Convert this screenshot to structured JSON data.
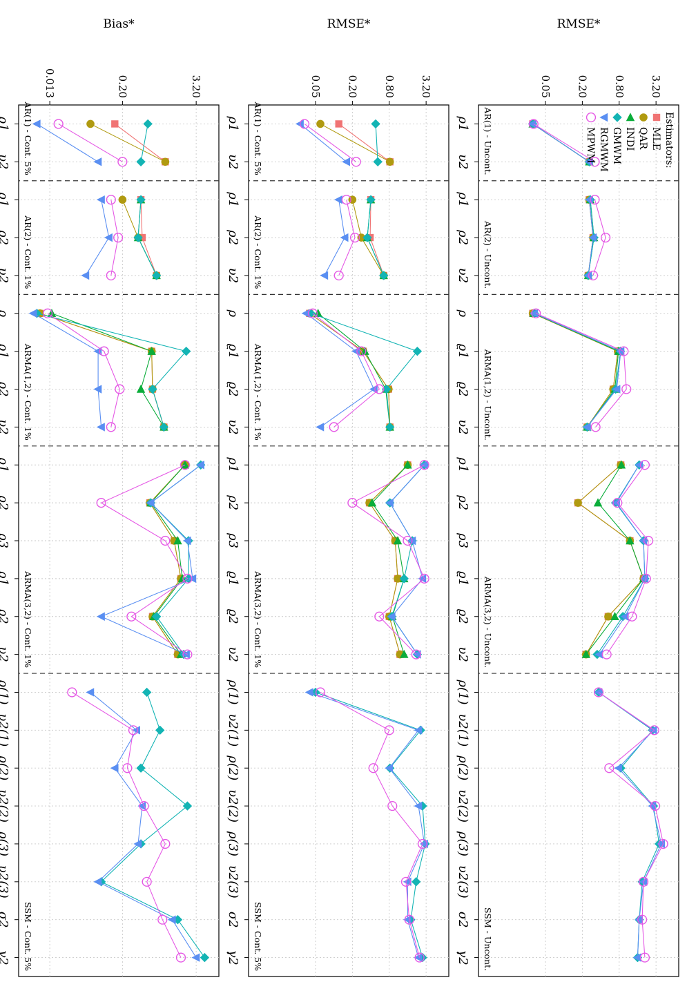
{
  "chart_data": {
    "type": "line",
    "estimators_title": "Estimators:",
    "estimators": [
      {
        "name": "MLE",
        "color": "#f07474",
        "shape": "square"
      },
      {
        "name": "QAR",
        "color": "#b09a10",
        "shape": "circle"
      },
      {
        "name": "INDI",
        "color": "#0aad3a",
        "shape": "triangle-left"
      },
      {
        "name": "GMWM",
        "color": "#13b4b4",
        "shape": "diamond"
      },
      {
        "name": "RGMWM",
        "color": "#5a8ff2",
        "shape": "triangle-down"
      },
      {
        "name": "MPWM",
        "color": "#e558e5",
        "shape": "open-circle"
      }
    ],
    "rows": [
      {
        "ylabel": "RMSE*",
        "yticks": [
          "0.05",
          "0.20",
          "0.80",
          "3.20"
        ],
        "panels": [
          {
            "title": "AR(1) - Uncont.",
            "params": [
              "ρ1",
              "υ2"
            ],
            "series": {
              "MLE": [
                0.031,
                0.26
              ],
              "QAR": [
                0.031,
                0.26
              ],
              "INDI": [
                0.031,
                0.26
              ],
              "GMWM": [
                0.031,
                0.26
              ],
              "RGMWM": [
                0.031,
                0.26
              ],
              "MPWM": [
                0.032,
                0.32
              ]
            }
          },
          {
            "title": "AR(2) - Uncont.",
            "params": [
              "ρ1",
              "ρ2",
              "υ2"
            ],
            "series": {
              "MLE": [
                0.26,
                0.3,
                0.25
              ],
              "QAR": [
                0.26,
                0.3,
                0.25
              ],
              "INDI": [
                0.27,
                0.31,
                0.25
              ],
              "GMWM": [
                0.27,
                0.31,
                0.25
              ],
              "RGMWM": [
                0.26,
                0.3,
                0.25
              ],
              "MPWM": [
                0.32,
                0.48,
                0.3
              ]
            }
          },
          {
            "title": "ARMA(1,2) - Uncont.",
            "params": [
              "ρ",
              "ϱ1",
              "ϱ2",
              "υ2"
            ],
            "series": {
              "MLE": [
                0.031,
                0.76,
                0.64,
                0.24
              ],
              "QAR": [
                0.031,
                0.76,
                0.64,
                0.24
              ],
              "INDI": [
                0.032,
                0.78,
                0.68,
                0.24
              ],
              "GMWM": [
                0.033,
                0.84,
                0.7,
                0.24
              ],
              "RGMWM": [
                0.033,
                0.85,
                0.73,
                0.24
              ],
              "MPWM": [
                0.035,
                0.95,
                1.05,
                0.33
              ]
            }
          },
          {
            "title": "ARMA(3,2) - Uncont.",
            "params": [
              "ρ1",
              "ρ2",
              "ρ3",
              "ϱ1",
              "ϱ2",
              "υ2"
            ],
            "series": {
              "MLE": [
                0.85,
                0.17,
                1.2,
                2.0,
                0.53,
                0.23
              ],
              "QAR": [
                0.85,
                0.17,
                1.2,
                2.0,
                0.53,
                0.23
              ],
              "INDI": [
                0.87,
                0.36,
                1.2,
                2.0,
                0.68,
                0.23
              ],
              "GMWM": [
                1.7,
                0.7,
                2.0,
                2.1,
                0.92,
                0.35
              ],
              "RGMWM": [
                1.7,
                0.72,
                2.0,
                2.1,
                1.0,
                0.38
              ],
              "MPWM": [
                2.1,
                0.75,
                2.4,
                2.2,
                1.3,
                0.5
              ]
            }
          },
          {
            "title": "SSM - Uncont.",
            "params": [
              "ρ(1)",
              "υ2(1)",
              "ρ(2)",
              "υ2(2)",
              "ρ(3)",
              "υ2(3)",
              "σ2",
              "γ2"
            ],
            "series": {
              "MLE": [],
              "QAR": [],
              "INDI": [],
              "GMWM": [
                0.37,
                2.8,
                0.85,
                2.9,
                3.6,
                1.9,
                1.7,
                1.6
              ],
              "RGMWM": [
                0.37,
                2.9,
                0.78,
                2.8,
                3.9,
                2.0,
                1.7,
                1.6
              ],
              "MPWM": [
                0.37,
                3.0,
                0.55,
                3.1,
                4.2,
                2.0,
                1.9,
                2.1
              ]
            }
          }
        ]
      },
      {
        "ylabel": "RMSE*",
        "yticks": [
          "0.05",
          "0.20",
          "0.80",
          "3.20"
        ],
        "panels": [
          {
            "title": "AR(1) - Cont. 5%",
            "params": [
              "ρ1",
              "υ2"
            ],
            "series": {
              "MLE": [
                0.12,
                0.82
              ],
              "QAR": [
                0.06,
                0.82
              ],
              "INDI": [],
              "GMWM": [
                0.48,
                0.52
              ],
              "RGMWM": [
                0.028,
                0.16
              ],
              "MPWM": [
                0.033,
                0.23
              ]
            }
          },
          {
            "title": "AR(2) - Cont. 1%",
            "params": [
              "ρ1",
              "ρ2",
              "υ2"
            ],
            "series": {
              "MLE": [
                0.4,
                0.39,
                0.65
              ],
              "QAR": [
                0.2,
                0.28,
                0.65
              ],
              "INDI": [
                0.4,
                0.35,
                0.65
              ],
              "GMWM": [
                0.4,
                0.35,
                0.65
              ],
              "RGMWM": [
                0.12,
                0.15,
                0.07
              ],
              "MPWM": [
                0.16,
                0.22,
                0.12
              ]
            }
          },
          {
            "title": "ARMA(1,2) - Cont. 1%",
            "params": [
              "ρ",
              "ϱ1",
              "ϱ2",
              "υ2"
            ],
            "series": {
              "MLE": [
                0.04,
                0.3,
                0.78,
                0.82
              ],
              "QAR": [
                0.04,
                0.3,
                0.78,
                0.82
              ],
              "INDI": [
                0.055,
                0.32,
                0.7,
                0.82
              ],
              "GMWM": [
                0.042,
                2.3,
                0.72,
                0.82
              ],
              "RGMWM": [
                0.035,
                0.23,
                0.45,
                0.06
              ],
              "MPWM": [
                0.045,
                0.28,
                0.55,
                0.1
              ]
            }
          },
          {
            "title": "ARMA(3,2) - Cont. 1%",
            "params": [
              "ρ1",
              "ρ2",
              "ρ3",
              "ϱ1",
              "ϱ2",
              "υ2"
            ],
            "series": {
              "MLE": [
                1.6,
                0.38,
                1.0,
                1.1,
                0.8,
                1.2
              ],
              "QAR": [
                1.6,
                0.38,
                1.0,
                1.1,
                0.8,
                1.2
              ],
              "INDI": [
                1.6,
                0.42,
                1.1,
                1.4,
                0.9,
                1.4
              ],
              "GMWM": [
                3.0,
                0.82,
                1.9,
                1.4,
                0.88,
                2.3
              ],
              "RGMWM": [
                3.0,
                0.82,
                1.9,
                2.8,
                0.88,
                2.3
              ],
              "MPWM": [
                3.0,
                0.2,
                1.6,
                3.0,
                0.55,
                2.2
              ]
            }
          },
          {
            "title": "SSM - Cont. 5%",
            "params": [
              "ρ(1)",
              "υ2(1)",
              "ρ(2)",
              "υ2(2)",
              "ρ(3)",
              "υ2(3)",
              "σ2",
              "γ2"
            ],
            "series": {
              "MLE": [],
              "QAR": [],
              "INDI": [],
              "GMWM": [
                0.05,
                2.6,
                0.82,
                2.8,
                3.1,
                2.2,
                1.8,
                2.8
              ],
              "RGMWM": [
                0.04,
                2.4,
                0.8,
                2.4,
                3.0,
                1.6,
                1.6,
                2.4
              ],
              "MPWM": [
                0.06,
                0.8,
                0.44,
                0.9,
                2.8,
                1.5,
                1.7,
                2.5
              ]
            }
          }
        ]
      },
      {
        "ylabel": "Bias*",
        "yticks": [
          "0.013",
          "0.20",
          "3.20"
        ],
        "panels": [
          {
            "title": "AR(1) - Cont. 5%",
            "params": [
              "ρ1",
              "υ2"
            ],
            "series": {
              "MLE": [
                0.15,
                1.0
              ],
              "QAR": [
                0.06,
                1.0
              ],
              "INDI": [],
              "GMWM": [
                0.52,
                0.4
              ],
              "RGMWM": [
                0.008,
                0.08
              ],
              "MPWM": [
                0.018,
                0.2
              ]
            }
          },
          {
            "title": "AR(2) - Cont. 1%",
            "params": [
              "ρ1",
              "ρ2",
              "υ2"
            ],
            "series": {
              "MLE": [
                0.4,
                0.42,
                0.72
              ],
              "QAR": [
                0.2,
                0.36,
                0.72
              ],
              "INDI": [
                0.4,
                0.36,
                0.72
              ],
              "GMWM": [
                0.4,
                0.36,
                0.72
              ],
              "RGMWM": [
                0.09,
                0.12,
                0.05
              ],
              "MPWM": [
                0.13,
                0.17,
                0.13
              ]
            }
          },
          {
            "title": "ARMA(1,2) - Cont. 1%",
            "params": [
              "ρ",
              "ϱ1",
              "ϱ2",
              "υ2"
            ],
            "series": {
              "MLE": [
                0.009,
                0.6,
                0.62,
                0.95
              ],
              "QAR": [
                0.009,
                0.6,
                0.62,
                0.95
              ],
              "INDI": [
                0.014,
                0.6,
                0.4,
                0.95
              ],
              "GMWM": [
                0.008,
                2.2,
                0.62,
                0.95
              ],
              "RGMWM": [
                0.007,
                0.08,
                0.08,
                0.09
              ],
              "MPWM": [
                0.012,
                0.1,
                0.18,
                0.13
              ]
            }
          },
          {
            "title": "ARMA(3,2) - Cont. 1%",
            "params": [
              "ρ1",
              "ρ2",
              "ρ3",
              "ϱ1",
              "ϱ2",
              "υ2"
            ],
            "series": {
              "MLE": [
                2.1,
                0.56,
                1.4,
                1.8,
                0.62,
                1.6
              ],
              "QAR": [
                2.1,
                0.56,
                1.4,
                1.8,
                0.62,
                1.6
              ],
              "INDI": [
                2.1,
                0.58,
                1.6,
                1.9,
                0.65,
                1.8
              ],
              "GMWM": [
                3.8,
                0.58,
                2.4,
                2.4,
                0.72,
                2.0
              ],
              "RGMWM": [
                3.8,
                0.58,
                2.3,
                2.8,
                0.09,
                2.2
              ],
              "MPWM": [
                2.1,
                0.09,
                1.0,
                2.3,
                0.28,
                2.3
              ]
            }
          },
          {
            "title": "SSM - Cont. 5%",
            "params": [
              "ρ(1)",
              "υ2(1)",
              "ρ(2)",
              "υ2(2)",
              "ρ(3)",
              "υ2(3)",
              "σ2",
              "γ2"
            ],
            "series": {
              "MLE": [],
              "QAR": [],
              "INDI": [],
              "GMWM": [
                0.5,
                0.82,
                0.4,
                2.3,
                0.4,
                0.09,
                1.6,
                4.4
              ],
              "RGMWM": [
                0.06,
                0.34,
                0.15,
                0.42,
                0.36,
                0.08,
                1.3,
                3.2
              ],
              "MPWM": [
                0.03,
                0.3,
                0.24,
                0.45,
                1.0,
                0.5,
                0.9,
                1.8
              ]
            }
          }
        ]
      }
    ]
  }
}
